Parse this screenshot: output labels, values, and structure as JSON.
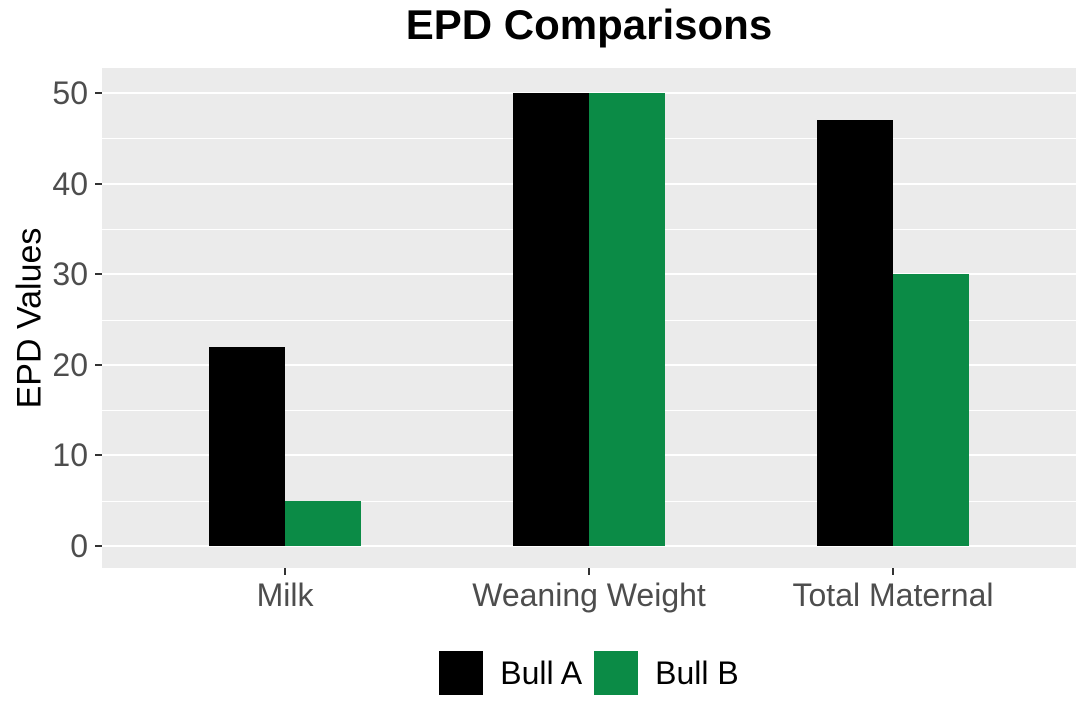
{
  "chart_data": {
    "type": "bar",
    "title": "EPD Comparisons",
    "xlabel": "",
    "ylabel": "EPD Values",
    "categories": [
      "Milk",
      "Weaning Weight",
      "Total Maternal"
    ],
    "series": [
      {
        "name": "Bull A",
        "color": "#000000",
        "values": [
          22,
          50,
          47
        ]
      },
      {
        "name": "Bull B",
        "color": "#0b8b46",
        "values": [
          5,
          50,
          30
        ]
      }
    ],
    "ylim": [
      0,
      50
    ],
    "yticks": [
      0,
      10,
      20,
      30,
      40,
      50
    ],
    "yticks_minor": [
      5,
      15,
      25,
      35,
      45
    ],
    "grid": true,
    "legend_position": "bottom",
    "colors": {
      "panel_background": "#ebebeb",
      "gridline": "#ffffff",
      "tick_mark": "#333333",
      "axis_text": "#4d4d4d",
      "title_text": "#000000"
    }
  }
}
